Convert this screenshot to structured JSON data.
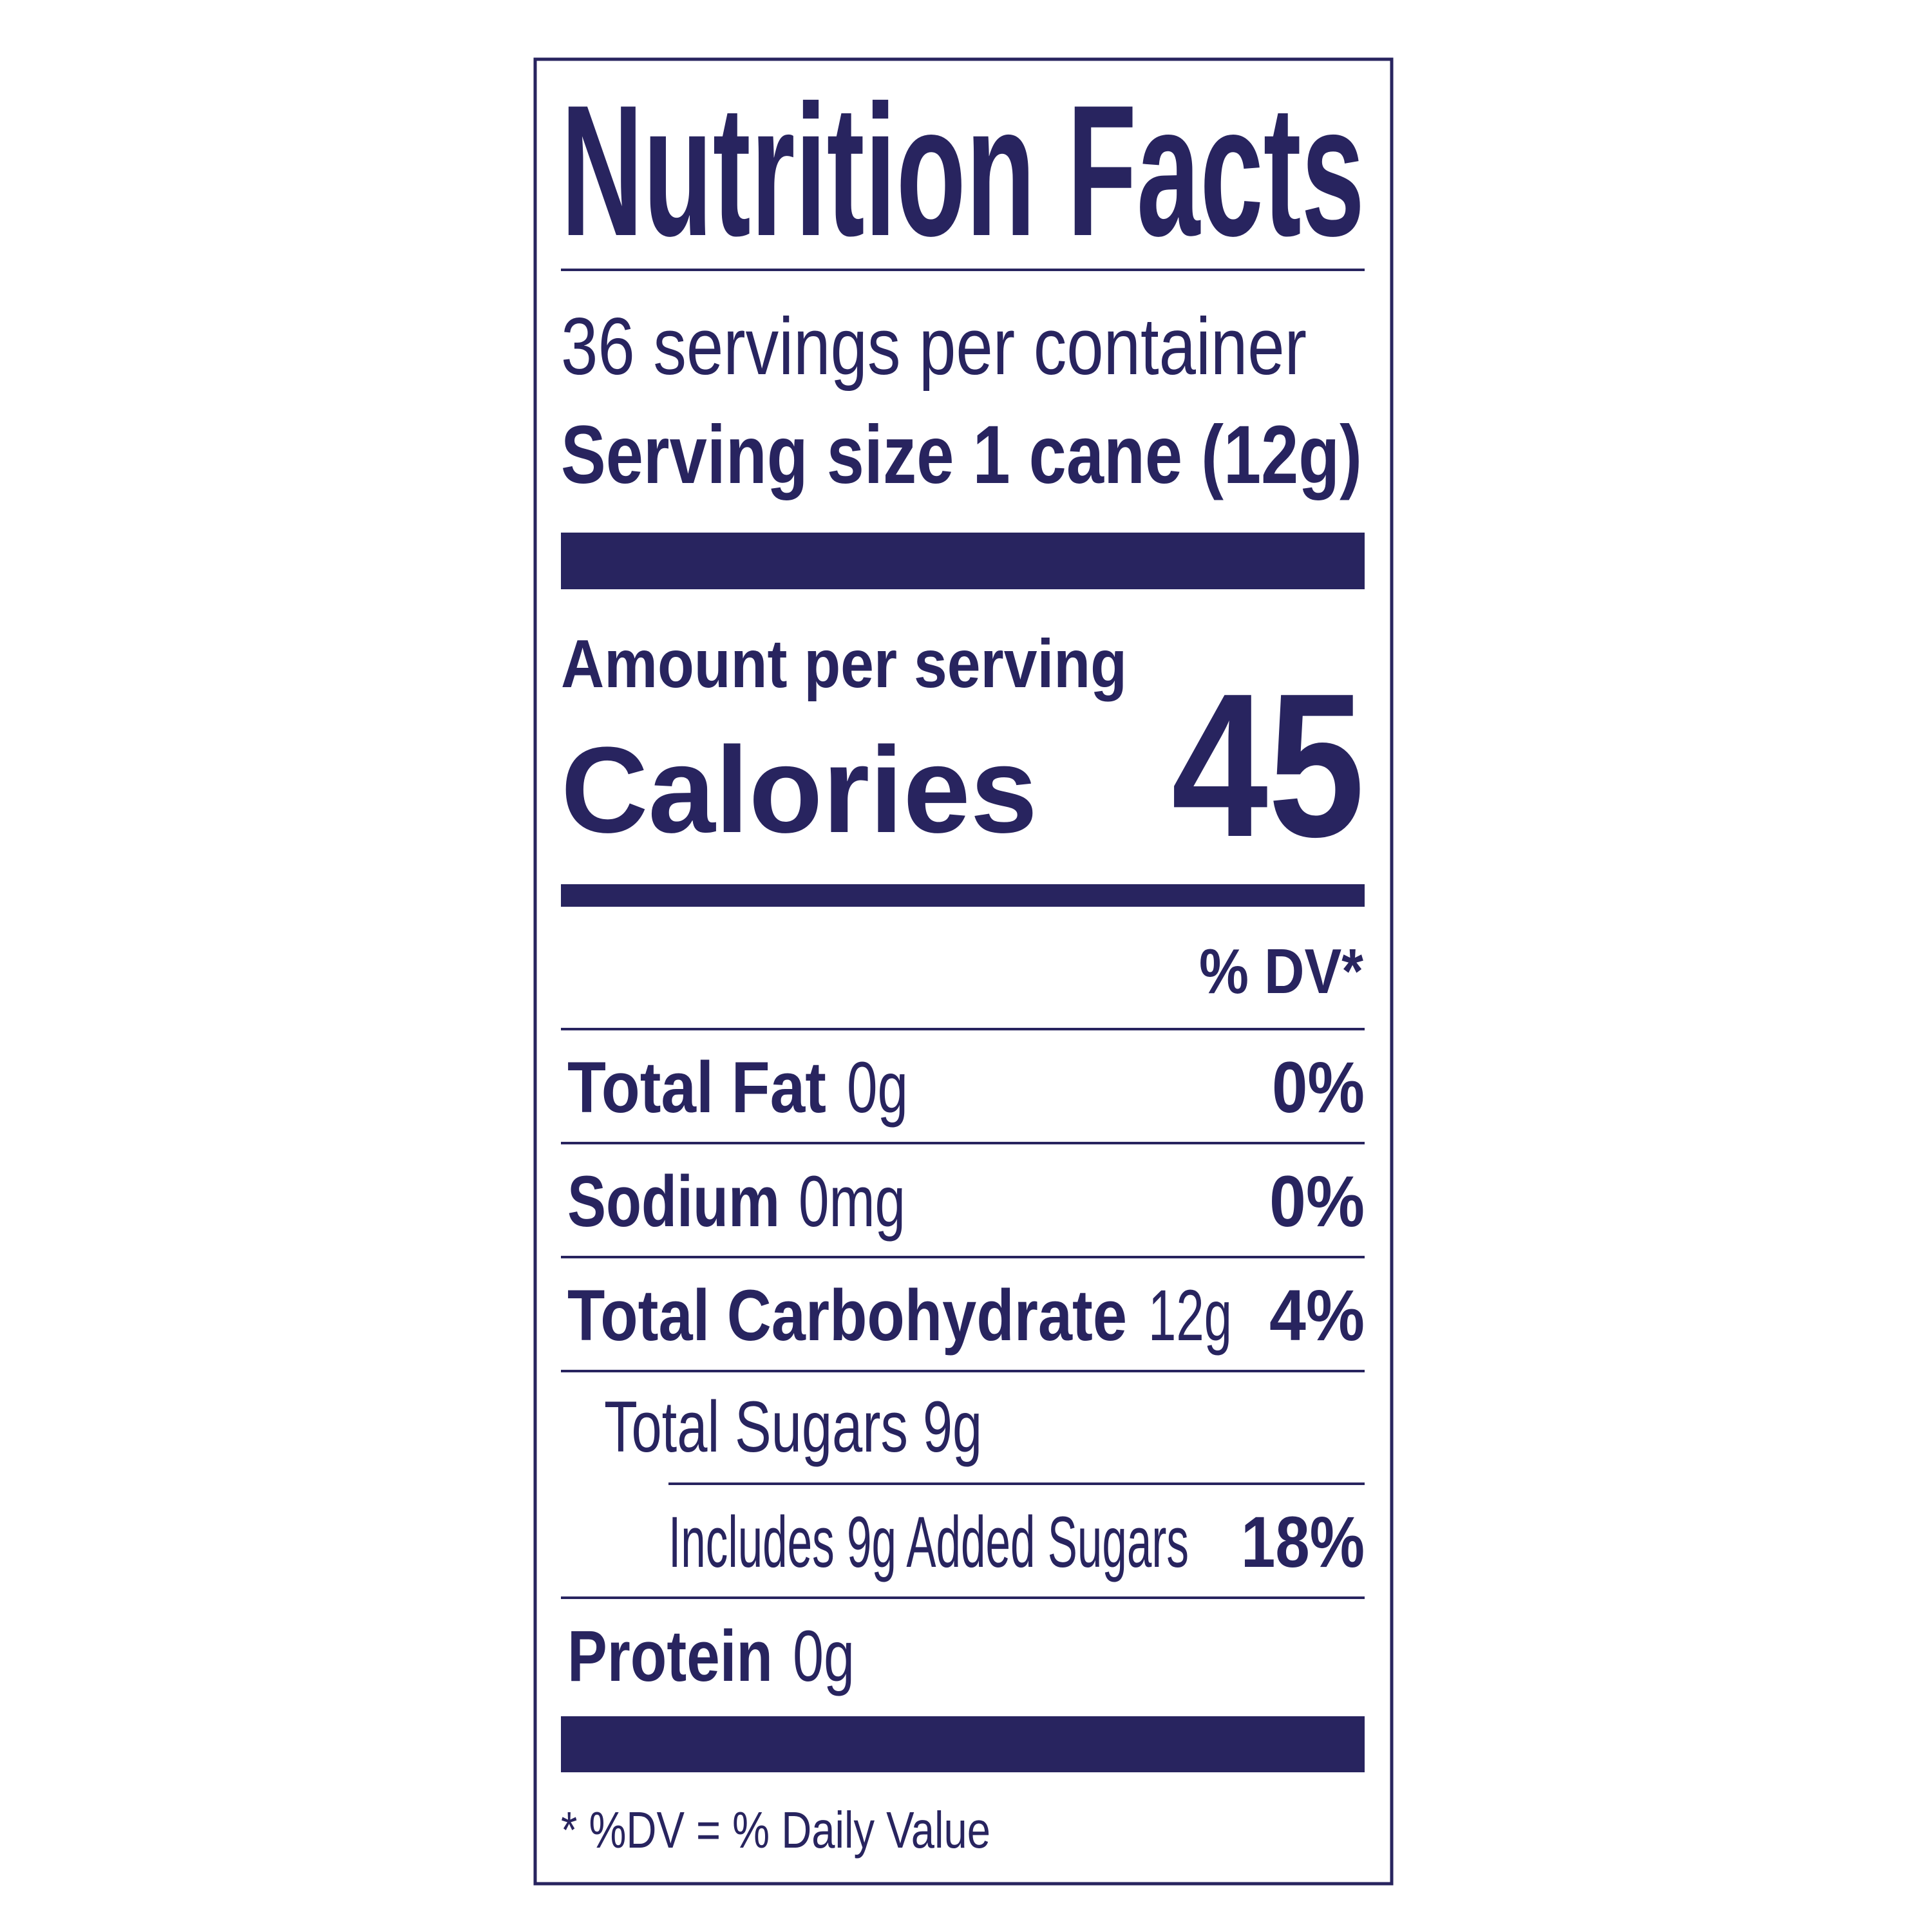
{
  "header": {
    "title": "Nutrition Facts"
  },
  "serving": {
    "servings_per_container": "36 servings per container",
    "serving_size": "Serving size 1 cane (12g)"
  },
  "calories": {
    "amount_label": "Amount per serving",
    "label": "Calories",
    "value": "45"
  },
  "dv_header": "% DV*",
  "nutrients": [
    {
      "name": "Total Fat",
      "amount": "0g",
      "dv": "0%"
    },
    {
      "name": "Sodium",
      "amount": "0mg",
      "dv": "0%"
    },
    {
      "name": "Total Carbohydrate",
      "amount": "12g",
      "dv": "4%"
    },
    {
      "name": "Total Sugars",
      "amount": "9g"
    },
    {
      "name": "Includes 9g Added Sugars",
      "dv": "18%"
    },
    {
      "name": "Protein",
      "amount": "0g"
    }
  ],
  "footnote": "* %DV = % Daily Value"
}
